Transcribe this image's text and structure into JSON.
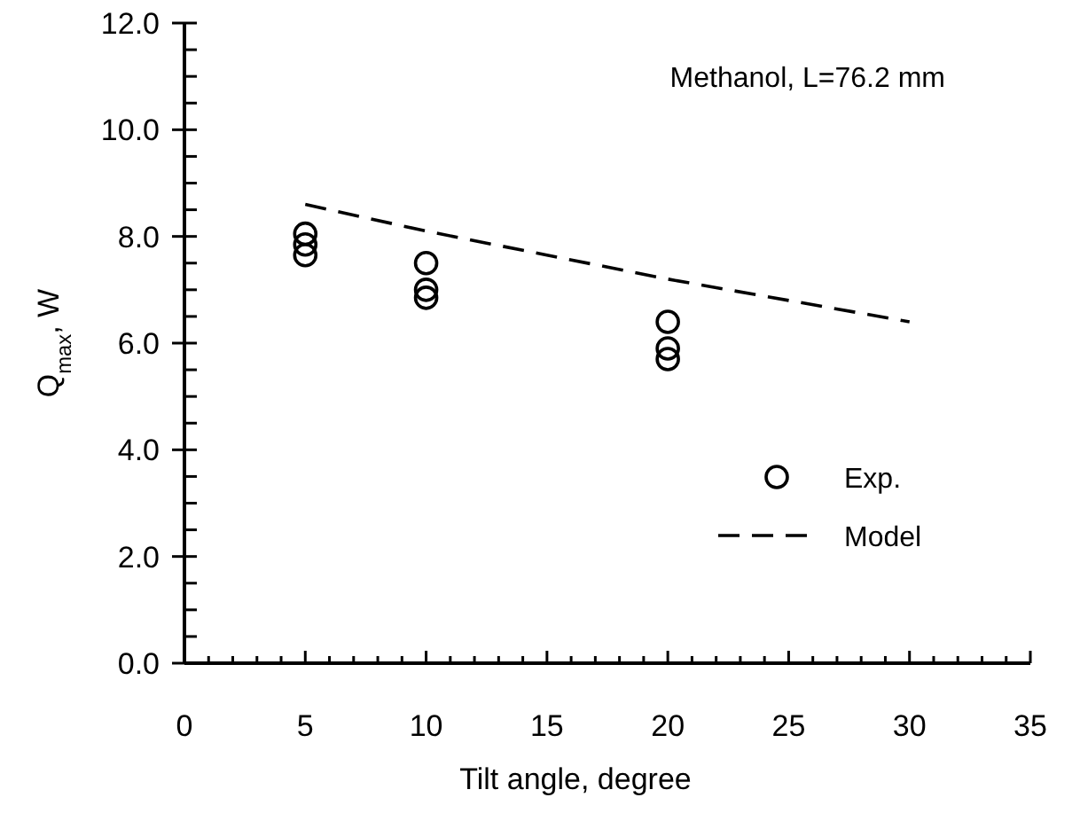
{
  "chart_data": {
    "type": "scatter",
    "xlabel": "Tilt angle, degree",
    "ylabel": "Q$_{max}$, W",
    "annotations": [
      "Methanol, L=76.2 mm"
    ],
    "xlim": [
      0,
      35
    ],
    "ylim": [
      0,
      12
    ],
    "xticks": [
      0,
      {
        "value": 1,
        "label": null
      },
      {
        "value": 2,
        "label": null
      },
      {
        "value": 3,
        "label": null
      },
      {
        "value": 4,
        "label": null
      },
      5,
      {
        "value": 6,
        "label": null
      },
      {
        "value": 7,
        "label": null
      },
      {
        "value": 8,
        "label": null
      },
      {
        "value": 9,
        "label": null
      },
      10,
      {
        "value": 11,
        "label": null
      },
      {
        "value": 12,
        "label": null
      },
      {
        "value": 13,
        "label": null
      },
      {
        "value": 14,
        "label": null
      },
      15,
      {
        "value": 16,
        "label": null
      },
      {
        "value": 17,
        "label": null
      },
      {
        "value": 18,
        "label": null
      },
      {
        "value": 19,
        "label": null
      },
      20,
      {
        "value": 21,
        "label": null
      },
      {
        "value": 22,
        "label": null
      },
      {
        "value": 23,
        "label": null
      },
      {
        "value": 24,
        "label": null
      },
      25,
      {
        "value": 26,
        "label": null
      },
      {
        "value": 27,
        "label": null
      },
      {
        "value": 28,
        "label": null
      },
      {
        "value": 29,
        "label": null
      },
      30,
      {
        "value": 31,
        "label": null
      },
      {
        "value": 32,
        "label": null
      },
      {
        "value": 33,
        "label": null
      },
      {
        "value": 34,
        "label": null
      },
      35
    ],
    "yticks": [
      {
        "value": 0,
        "label": "0.0"
      },
      {
        "value": 0.5,
        "label": null
      },
      {
        "value": 1,
        "label": null
      },
      {
        "value": 1.5,
        "label": null
      },
      {
        "value": 2,
        "label": "2.0"
      },
      {
        "value": 2.5,
        "label": null
      },
      {
        "value": 3,
        "label": null
      },
      {
        "value": 3.5,
        "label": null
      },
      {
        "value": 4,
        "label": "4.0"
      },
      {
        "value": 4.5,
        "label": null
      },
      {
        "value": 5,
        "label": null
      },
      {
        "value": 5.5,
        "label": null
      },
      {
        "value": 6,
        "label": "6.0"
      },
      {
        "value": 6.5,
        "label": null
      },
      {
        "value": 7,
        "label": null
      },
      {
        "value": 7.5,
        "label": null
      },
      {
        "value": 8,
        "label": "8.0"
      },
      {
        "value": 8.5,
        "label": null
      },
      {
        "value": 9,
        "label": null
      },
      {
        "value": 9.5,
        "label": null
      },
      {
        "value": 10,
        "label": "10.0"
      },
      {
        "value": 10.5,
        "label": null
      },
      {
        "value": 11,
        "label": null
      },
      {
        "value": 11.5,
        "label": null
      },
      {
        "value": 12,
        "label": "12.0"
      }
    ],
    "grid": false,
    "legend": "bottom right",
    "series": [
      {
        "name": "Exp.",
        "marker": "circle",
        "color": "#000000",
        "x": [
          5,
          5,
          5,
          10,
          10,
          10,
          20,
          20,
          20
        ],
        "values": [
          8.05,
          7.85,
          7.65,
          7.5,
          7.0,
          6.85,
          6.4,
          5.9,
          5.7
        ]
      },
      {
        "name": "Model",
        "type": "line",
        "line_style": "dashed",
        "marker": "none",
        "color": "#000000",
        "x": [
          5,
          10,
          15,
          20,
          25,
          30
        ],
        "values": [
          8.6,
          8.1,
          7.65,
          7.2,
          6.8,
          6.4
        ]
      }
    ]
  }
}
